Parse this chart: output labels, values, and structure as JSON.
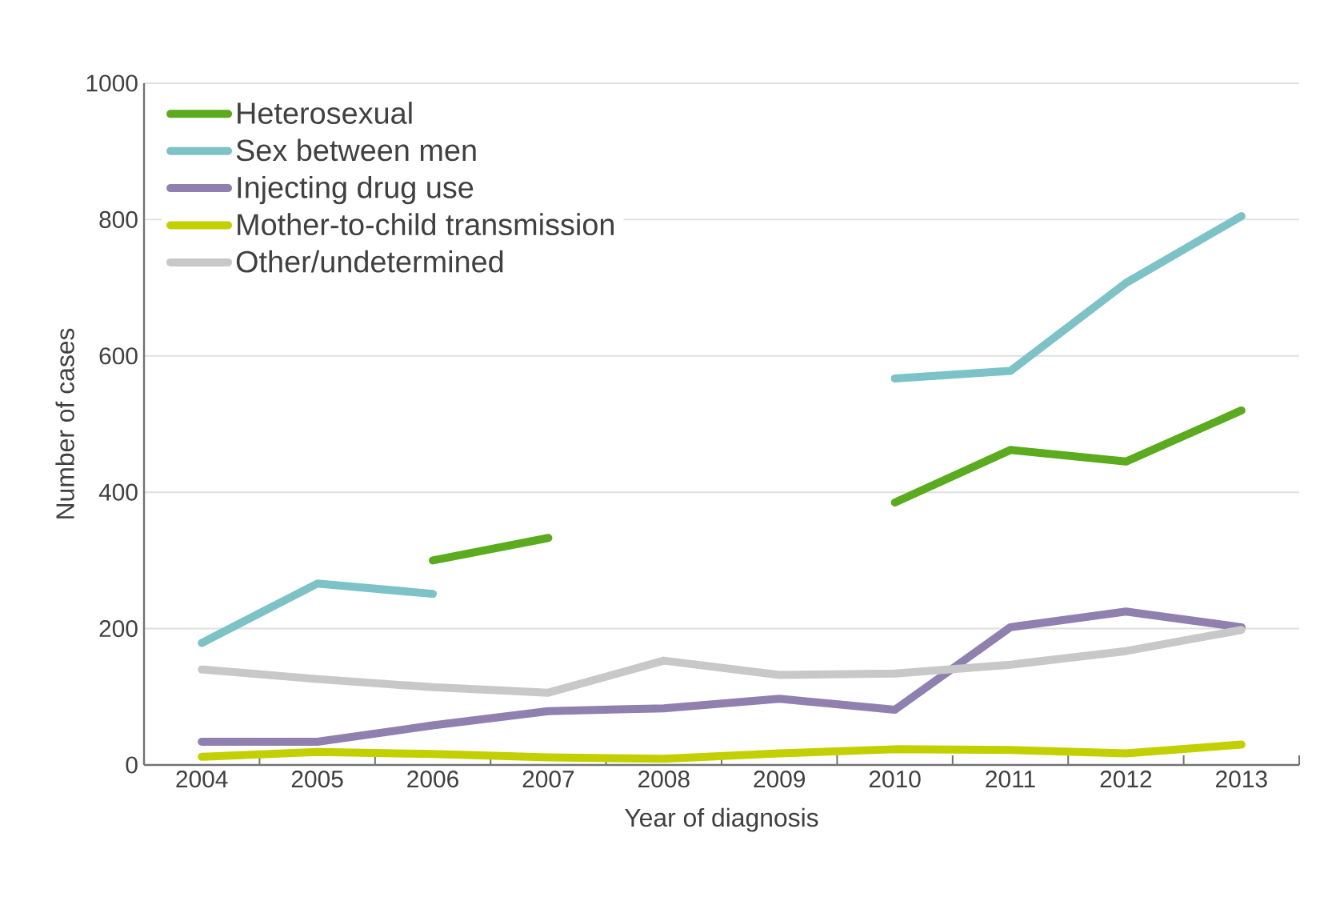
{
  "chart_data": {
    "type": "line",
    "xlabel": "Year of diagnosis",
    "ylabel": "Number of cases",
    "categories": [
      "2004",
      "2005",
      "2006",
      "2007",
      "2008",
      "2009",
      "2010",
      "2011",
      "2012",
      "2013"
    ],
    "ylim": [
      0,
      1000
    ],
    "yticks": [
      0,
      200,
      400,
      600,
      800,
      1000
    ],
    "grid": "y",
    "legend": "top left",
    "line_style": "solid",
    "marker": "none",
    "series": [
      {
        "name": "Heterosexual",
        "color": "#5aab1e",
        "values": [
          null,
          null,
          300,
          333,
          null,
          null,
          385,
          462,
          445,
          520
        ]
      },
      {
        "name": "Sex between men",
        "color": "#7dc2c6",
        "values": [
          179,
          266,
          251,
          null,
          null,
          null,
          567,
          578,
          707,
          805
        ]
      },
      {
        "name": "Injecting drug use",
        "color": "#8f80b0",
        "values": [
          34,
          34,
          58,
          79,
          83,
          97,
          81,
          202,
          225,
          202
        ]
      },
      {
        "name": "Mother-to-child transmission",
        "color": "#c3d000",
        "values": [
          12,
          19,
          16,
          11,
          9,
          17,
          23,
          22,
          17,
          30
        ]
      },
      {
        "name": "Other/undetermined",
        "color": "#c8c8c8",
        "values": [
          140,
          126,
          114,
          106,
          153,
          132,
          134,
          147,
          167,
          198
        ]
      }
    ]
  }
}
